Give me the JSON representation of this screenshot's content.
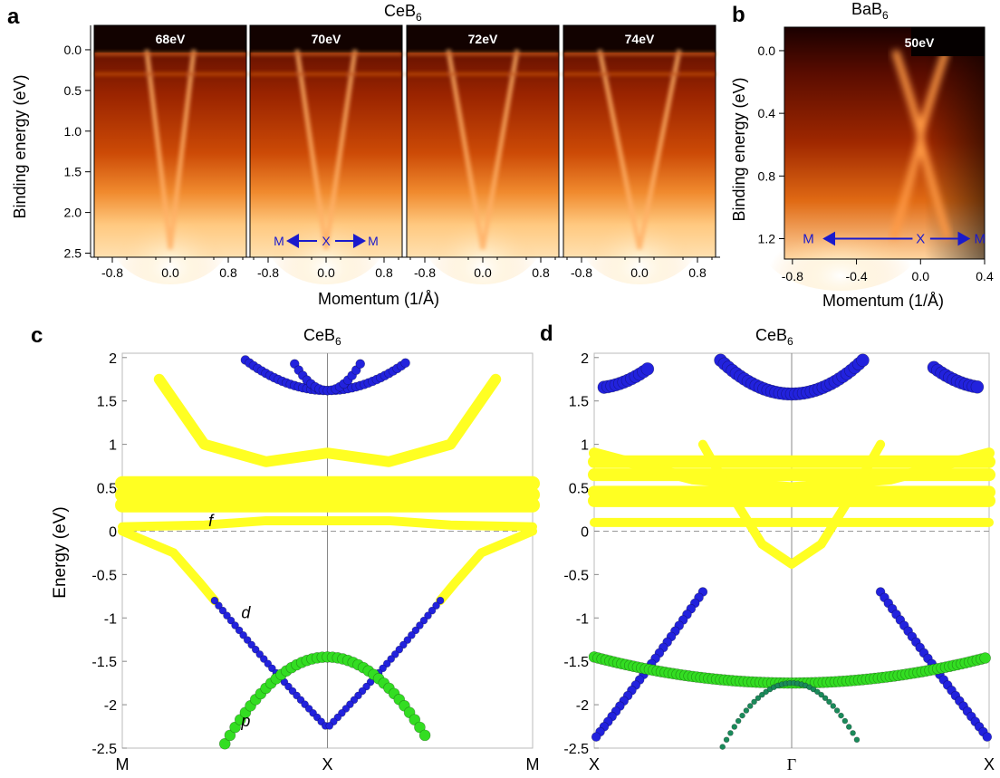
{
  "panels": {
    "a": {
      "label": "a",
      "title_main": "CeB",
      "title_sub": "6",
      "ylabel": "Binding energy (eV)",
      "xlabel": "Momentum (1/Å)",
      "y_ticks": [
        "0.0",
        "0.5",
        "1.0",
        "1.5",
        "2.0",
        "2.5"
      ],
      "y_tick_values": [
        0.0,
        0.5,
        1.0,
        1.5,
        2.0,
        2.5
      ],
      "y_range": [
        -0.3,
        2.55
      ],
      "x_range": [
        -1.05,
        1.05
      ],
      "x_ticks": [
        "-0.8",
        "0.0",
        "0.8"
      ],
      "x_tick_values": [
        -0.8,
        0.0,
        0.8
      ],
      "energies": [
        "68eV",
        "70eV",
        "72eV",
        "74eV"
      ],
      "dir_labels": [
        "M",
        "X",
        "M"
      ]
    },
    "b": {
      "label": "b",
      "title_main": "BaB",
      "title_sub": "6",
      "ylabel": "Binding energy (eV)",
      "xlabel": "Momentum (1/Å)",
      "energy": "50eV",
      "y_ticks": [
        "0.0",
        "0.4",
        "0.8",
        "1.2"
      ],
      "y_tick_values": [
        0.0,
        0.4,
        0.8,
        1.2
      ],
      "y_range": [
        -0.15,
        1.33
      ],
      "x_ticks": [
        "-0.8",
        "-0.4",
        "0.0",
        "0.4"
      ],
      "x_tick_values": [
        -0.8,
        -0.4,
        0.0,
        0.4
      ],
      "x_range": [
        -0.85,
        0.4
      ],
      "dir_labels": [
        "M",
        "X",
        "M"
      ]
    },
    "c": {
      "label": "c",
      "title_main": "CeB",
      "title_sub": "6",
      "ylabel": "Energy (eV)",
      "y_ticks": [
        "2",
        "1.5",
        "1",
        "0.5",
        "0",
        "-0.5",
        "-1",
        "-1.5",
        "-2",
        "-2.5"
      ],
      "y_tick_values": [
        2,
        1.5,
        1,
        0.5,
        0,
        -0.5,
        -1,
        -1.5,
        -2,
        -2.5
      ],
      "y_range": [
        -2.5,
        2.05
      ],
      "k_labels": [
        "M",
        "X",
        "M"
      ],
      "orbital_labels": [
        "f",
        "d",
        "p"
      ]
    },
    "d": {
      "label": "d",
      "title_main": "CeB",
      "title_sub": "6",
      "y_ticks": [
        "2",
        "1.5",
        "1",
        "0.5",
        "0",
        "-0.5",
        "-1",
        "-1.5",
        "-2",
        "-2.5"
      ],
      "y_tick_values": [
        2,
        1.5,
        1,
        0.5,
        0,
        -0.5,
        -1,
        -1.5,
        -2,
        -2.5
      ],
      "y_range": [
        -2.5,
        2.05
      ],
      "k_labels": [
        "X",
        "Γ",
        "X"
      ]
    }
  },
  "colors": {
    "f_band": "#ffff22",
    "d_band": "#2222dd",
    "p_band": "#33dd22",
    "arrow": "#1a1acc",
    "fermi_line": "#999999"
  }
}
